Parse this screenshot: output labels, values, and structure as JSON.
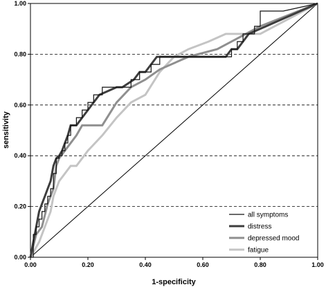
{
  "chart_data": {
    "type": "line",
    "title": "",
    "xlabel": "1-specificity",
    "ylabel": "sensitivity",
    "xlim": [
      0,
      1
    ],
    "ylim": [
      0,
      1
    ],
    "x_ticks": [
      "0.00",
      "0.20",
      "0.40",
      "0.60",
      "0.80",
      "1.00"
    ],
    "y_ticks": [
      "0.00",
      "0.20",
      "0.40",
      "0.60",
      "0.80",
      "1.00"
    ],
    "gridlines": "horizontal-dashed",
    "legend_position": "bottom-right",
    "reference_line": {
      "x": [
        0,
        1
      ],
      "y": [
        0,
        1
      ]
    },
    "series": [
      {
        "name": "all symptoms",
        "color": "#111111",
        "style": "step",
        "x": [
          0.0,
          0.01,
          0.01,
          0.02,
          0.02,
          0.03,
          0.03,
          0.04,
          0.04,
          0.05,
          0.05,
          0.06,
          0.06,
          0.07,
          0.07,
          0.08,
          0.08,
          0.09,
          0.09,
          0.1,
          0.1,
          0.11,
          0.11,
          0.12,
          0.12,
          0.13,
          0.13,
          0.14,
          0.14,
          0.16,
          0.16,
          0.18,
          0.18,
          0.2,
          0.2,
          0.22,
          0.22,
          0.25,
          0.25,
          0.27,
          0.27,
          0.35,
          0.35,
          0.38,
          0.38,
          0.42,
          0.42,
          0.45,
          0.45,
          0.7,
          0.7,
          0.72,
          0.72,
          0.74,
          0.74,
          0.78,
          0.78,
          0.8,
          0.8,
          0.88,
          1.0
        ],
        "y": [
          0.0,
          0.0,
          0.09,
          0.09,
          0.12,
          0.12,
          0.15,
          0.15,
          0.18,
          0.18,
          0.21,
          0.21,
          0.24,
          0.24,
          0.27,
          0.27,
          0.33,
          0.33,
          0.39,
          0.39,
          0.4,
          0.4,
          0.42,
          0.42,
          0.45,
          0.45,
          0.48,
          0.48,
          0.52,
          0.52,
          0.55,
          0.55,
          0.58,
          0.58,
          0.61,
          0.61,
          0.64,
          0.64,
          0.67,
          0.67,
          0.67,
          0.67,
          0.7,
          0.7,
          0.73,
          0.73,
          0.76,
          0.76,
          0.79,
          0.79,
          0.82,
          0.82,
          0.85,
          0.85,
          0.88,
          0.88,
          0.91,
          0.91,
          0.97,
          0.97,
          1.0
        ]
      },
      {
        "name": "distress",
        "color": "#3d3d3d",
        "style": "linear",
        "x": [
          0.0,
          0.01,
          0.02,
          0.03,
          0.04,
          0.05,
          0.06,
          0.07,
          0.08,
          0.09,
          0.1,
          0.11,
          0.12,
          0.13,
          0.14,
          0.16,
          0.18,
          0.2,
          0.22,
          0.24,
          0.3,
          0.32,
          0.36,
          0.38,
          0.4,
          0.42,
          0.44,
          0.45,
          0.66,
          0.68,
          0.7,
          0.72,
          0.74,
          0.76,
          1.0
        ],
        "y": [
          0.0,
          0.06,
          0.12,
          0.18,
          0.21,
          0.24,
          0.27,
          0.3,
          0.36,
          0.39,
          0.4,
          0.42,
          0.45,
          0.48,
          0.52,
          0.52,
          0.55,
          0.58,
          0.61,
          0.64,
          0.67,
          0.67,
          0.7,
          0.73,
          0.73,
          0.76,
          0.79,
          0.79,
          0.79,
          0.79,
          0.82,
          0.82,
          0.85,
          0.88,
          1.0
        ]
      },
      {
        "name": "depressed mood",
        "color": "#8f8f8f",
        "style": "linear",
        "x": [
          0.0,
          0.02,
          0.04,
          0.06,
          0.08,
          0.09,
          0.1,
          0.12,
          0.14,
          0.16,
          0.18,
          0.2,
          0.25,
          0.3,
          0.35,
          0.4,
          0.45,
          0.55,
          0.65,
          0.7,
          0.75,
          0.8,
          1.0
        ],
        "y": [
          0.0,
          0.09,
          0.12,
          0.21,
          0.27,
          0.36,
          0.39,
          0.42,
          0.45,
          0.48,
          0.52,
          0.52,
          0.52,
          0.61,
          0.67,
          0.7,
          0.74,
          0.79,
          0.82,
          0.85,
          0.88,
          0.91,
          1.0
        ]
      },
      {
        "name": "fatigue",
        "color": "#c4c4c4",
        "style": "linear",
        "x": [
          0.0,
          0.03,
          0.05,
          0.07,
          0.08,
          0.1,
          0.12,
          0.14,
          0.16,
          0.2,
          0.25,
          0.3,
          0.35,
          0.4,
          0.45,
          0.5,
          0.55,
          0.62,
          0.68,
          0.72,
          0.8,
          0.9,
          1.0
        ],
        "y": [
          0.0,
          0.06,
          0.12,
          0.18,
          0.24,
          0.3,
          0.33,
          0.36,
          0.36,
          0.42,
          0.48,
          0.55,
          0.61,
          0.64,
          0.73,
          0.79,
          0.82,
          0.85,
          0.88,
          0.88,
          0.88,
          0.94,
          1.0
        ]
      }
    ]
  }
}
